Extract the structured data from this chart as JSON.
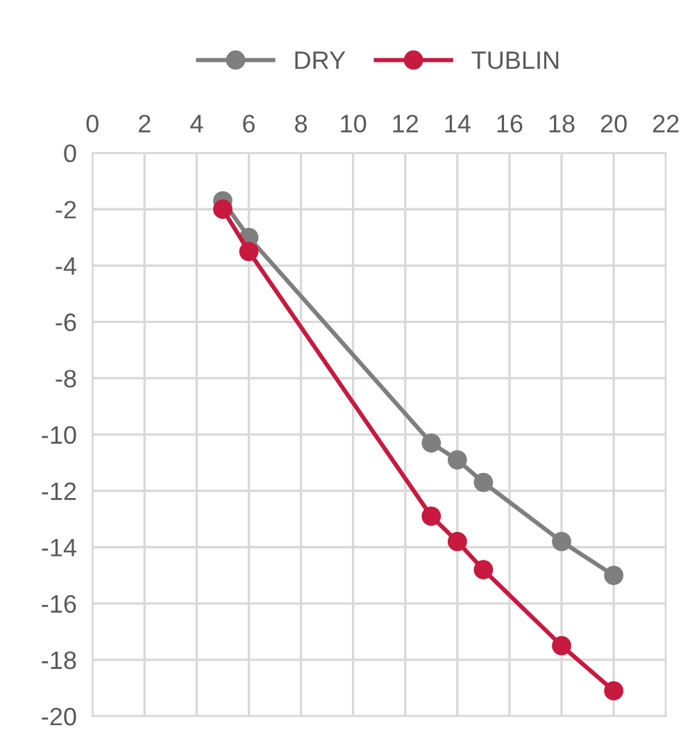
{
  "chart_data": {
    "type": "line",
    "x": [
      5,
      6,
      13,
      14,
      15,
      18,
      20
    ],
    "series": [
      {
        "name": "DRY",
        "color": "#7f7f7f",
        "values": [
          -1.7,
          -3.0,
          -10.3,
          -10.9,
          -11.7,
          -13.8,
          -15.0
        ]
      },
      {
        "name": "TUBLIN",
        "color": "#c8193f",
        "values": [
          -2.0,
          -3.5,
          -12.9,
          -13.8,
          -14.8,
          -17.5,
          -19.1
        ]
      }
    ],
    "xlim": [
      0,
      22
    ],
    "xticks": [
      0,
      2,
      4,
      6,
      8,
      10,
      12,
      14,
      16,
      18,
      20,
      22
    ],
    "ylim": [
      -20,
      0
    ],
    "yticks": [
      -20,
      -18,
      -16,
      -14,
      -12,
      -10,
      -8,
      -6,
      -4,
      -2,
      0
    ],
    "grid": true,
    "legend": "top",
    "marker": "circle",
    "line_style": "solid"
  }
}
